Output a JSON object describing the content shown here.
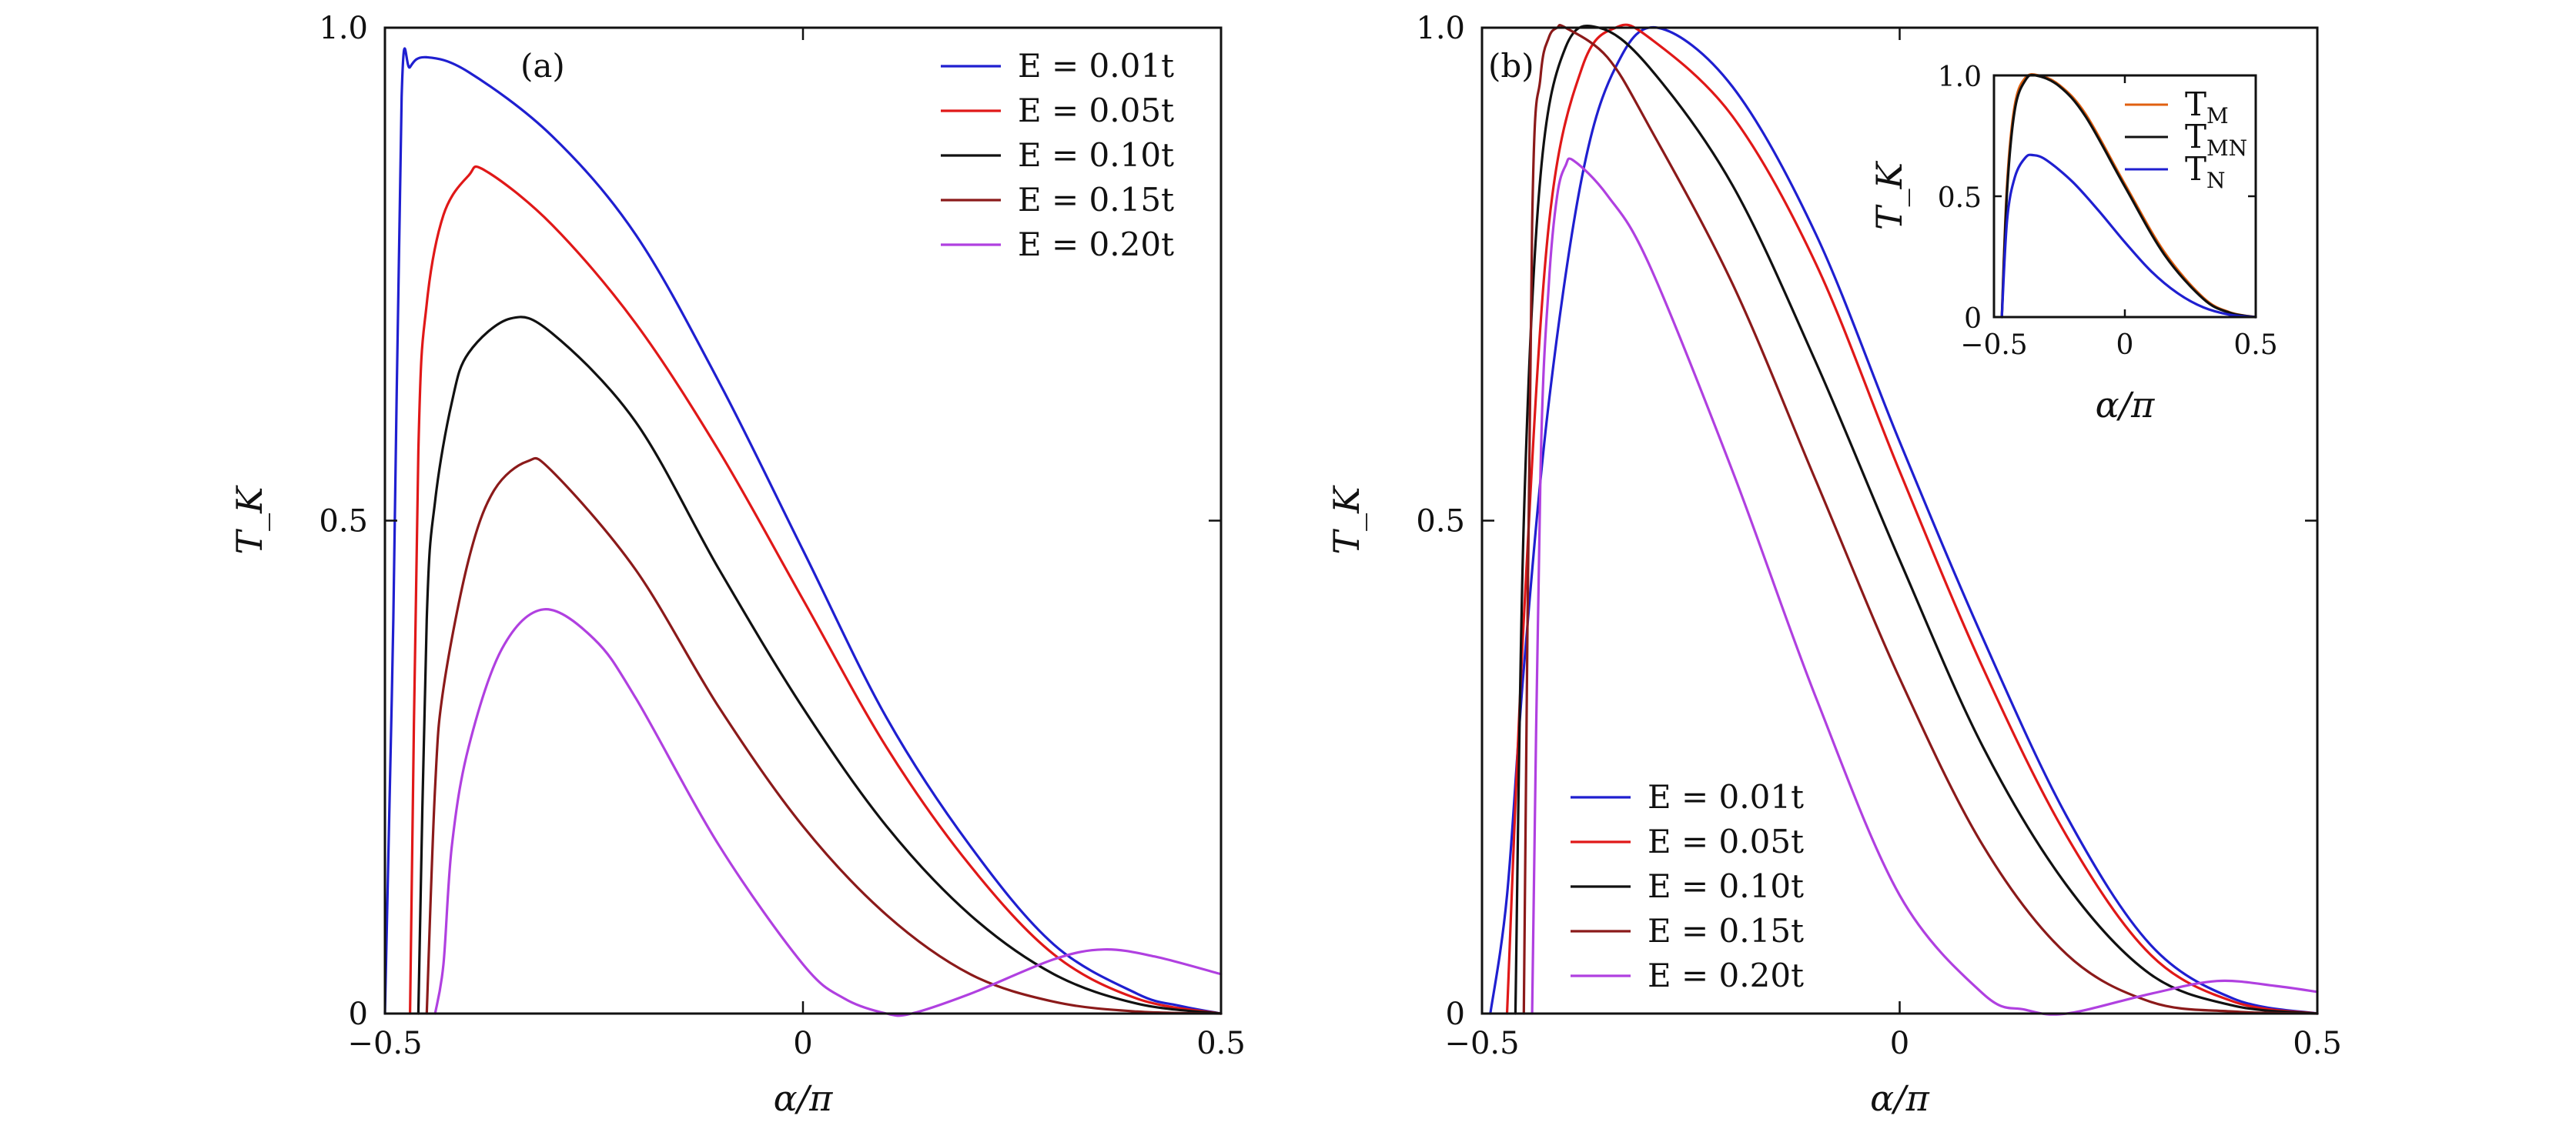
{
  "chart_data": [
    {
      "panel": "(a)",
      "type": "line",
      "xlabel": "α/π",
      "ylabel": "T_K",
      "xlim": [
        -0.5,
        0.5
      ],
      "ylim": [
        0,
        1.0
      ],
      "xticks": [
        "−0.5",
        "0",
        "0.5"
      ],
      "yticks": [
        "0",
        "0.5",
        "1.0"
      ],
      "legend_position": "top-right",
      "series": [
        {
          "name": "E = 0.01t",
          "color": "#1f1fd0",
          "x": [
            -0.5,
            -0.49,
            -0.48,
            -0.47,
            -0.45,
            -0.4,
            -0.3,
            -0.2,
            -0.1,
            0.0,
            0.1,
            0.2,
            0.3,
            0.4,
            0.45,
            0.5
          ],
          "y": [
            0,
            0.4,
            0.93,
            0.96,
            0.97,
            0.955,
            0.89,
            0.79,
            0.64,
            0.47,
            0.3,
            0.17,
            0.07,
            0.02,
            0.008,
            0.0
          ]
        },
        {
          "name": "E = 0.05t",
          "color": "#e01818",
          "x": [
            -0.47,
            -0.46,
            -0.45,
            -0.43,
            -0.4,
            -0.38,
            -0.3,
            -0.2,
            -0.1,
            0.0,
            0.1,
            0.2,
            0.3,
            0.4,
            0.5
          ],
          "y": [
            0,
            0.57,
            0.72,
            0.81,
            0.85,
            0.855,
            0.8,
            0.7,
            0.57,
            0.42,
            0.27,
            0.15,
            0.06,
            0.015,
            0.0
          ]
        },
        {
          "name": "E = 0.10t",
          "color": "#111111",
          "x": [
            -0.46,
            -0.45,
            -0.44,
            -0.42,
            -0.4,
            -0.35,
            -0.3,
            -0.2,
            -0.1,
            0.0,
            0.1,
            0.2,
            0.3,
            0.4,
            0.5
          ],
          "y": [
            0,
            0.4,
            0.52,
            0.62,
            0.67,
            0.705,
            0.69,
            0.6,
            0.45,
            0.31,
            0.19,
            0.1,
            0.04,
            0.01,
            0.0
          ]
        },
        {
          "name": "E = 0.15t",
          "color": "#8b1a1a",
          "x": [
            -0.45,
            -0.44,
            -0.43,
            -0.4,
            -0.37,
            -0.33,
            -0.3,
            -0.2,
            -0.1,
            0.0,
            0.1,
            0.2,
            0.3,
            0.4,
            0.5
          ],
          "y": [
            0,
            0.23,
            0.33,
            0.46,
            0.53,
            0.56,
            0.55,
            0.45,
            0.31,
            0.19,
            0.1,
            0.04,
            0.012,
            0.002,
            0.0
          ]
        },
        {
          "name": "E = 0.20t",
          "color": "#b040e0",
          "x": [
            -0.44,
            -0.43,
            -0.42,
            -0.4,
            -0.36,
            -0.31,
            -0.25,
            -0.2,
            -0.1,
            0.0,
            0.05,
            0.1,
            0.13,
            0.2,
            0.3,
            0.36,
            0.42,
            0.5
          ],
          "y": [
            0,
            0.05,
            0.17,
            0.27,
            0.37,
            0.41,
            0.38,
            0.32,
            0.17,
            0.05,
            0.015,
            0.0,
            0.0,
            0.02,
            0.055,
            0.065,
            0.058,
            0.04
          ]
        }
      ]
    },
    {
      "panel": "(b)",
      "type": "line",
      "xlabel": "α/π",
      "ylabel": "T_K",
      "xlim": [
        -0.5,
        0.5
      ],
      "ylim": [
        0,
        1.0
      ],
      "xticks": [
        "−0.5",
        "0",
        "0.5"
      ],
      "yticks": [
        "0",
        "0.5",
        "1.0"
      ],
      "legend_position": "bottom-left",
      "series": [
        {
          "name": "E = 0.01t",
          "color": "#1f1fd0",
          "x": [
            -0.49,
            -0.47,
            -0.45,
            -0.42,
            -0.38,
            -0.34,
            -0.29,
            -0.2,
            -0.1,
            0.0,
            0.1,
            0.2,
            0.3,
            0.4,
            0.5
          ],
          "y": [
            0,
            0.12,
            0.35,
            0.62,
            0.85,
            0.96,
            1.0,
            0.94,
            0.79,
            0.58,
            0.38,
            0.2,
            0.07,
            0.015,
            0.0
          ]
        },
        {
          "name": "E = 0.05t",
          "color": "#e01818",
          "x": [
            -0.47,
            -0.45,
            -0.42,
            -0.38,
            -0.34,
            -0.3,
            -0.2,
            -0.1,
            0.0,
            0.1,
            0.2,
            0.3,
            0.4,
            0.5
          ],
          "y": [
            0,
            0.4,
            0.8,
            0.96,
            1.0,
            0.99,
            0.91,
            0.76,
            0.55,
            0.35,
            0.18,
            0.06,
            0.012,
            0.0
          ]
        },
        {
          "name": "E = 0.10t",
          "color": "#111111",
          "x": [
            -0.46,
            -0.45,
            -0.43,
            -0.4,
            -0.36,
            -0.3,
            -0.2,
            -0.1,
            0.0,
            0.1,
            0.2,
            0.3,
            0.4,
            0.5
          ],
          "y": [
            0,
            0.5,
            0.85,
            0.98,
            1.0,
            0.96,
            0.84,
            0.66,
            0.46,
            0.27,
            0.13,
            0.04,
            0.008,
            0.0
          ]
        },
        {
          "name": "E = 0.15t",
          "color": "#8b1a1a",
          "x": [
            -0.45,
            -0.44,
            -0.43,
            -0.42,
            -0.41,
            -0.4,
            -0.35,
            -0.3,
            -0.2,
            -0.1,
            0.0,
            0.1,
            0.2,
            0.3,
            0.4,
            0.5
          ],
          "y": [
            0,
            0.8,
            0.95,
            0.99,
            1.0,
            1.0,
            0.97,
            0.9,
            0.74,
            0.54,
            0.34,
            0.17,
            0.06,
            0.012,
            0.002,
            0.0
          ]
        },
        {
          "name": "E = 0.20t",
          "color": "#b040e0",
          "x": [
            -0.44,
            -0.43,
            -0.42,
            -0.41,
            -0.4,
            -0.39,
            -0.35,
            -0.3,
            -0.2,
            -0.1,
            0.0,
            0.1,
            0.15,
            0.2,
            0.3,
            0.38,
            0.45,
            0.5
          ],
          "y": [
            0,
            0.55,
            0.74,
            0.83,
            0.86,
            0.865,
            0.83,
            0.76,
            0.55,
            0.32,
            0.12,
            0.02,
            0.004,
            0.0,
            0.02,
            0.033,
            0.028,
            0.022
          ]
        }
      ]
    },
    {
      "panel": "(b) inset",
      "type": "line",
      "xlabel": "α/π",
      "ylabel": "T_K",
      "xlim": [
        -0.5,
        0.5
      ],
      "ylim": [
        0,
        1.0
      ],
      "xticks": [
        "−0.5",
        "0",
        "0.5"
      ],
      "yticks": [
        "0",
        "0.5",
        "1.0"
      ],
      "legend_position": "top-right",
      "series": [
        {
          "name": "T",
          "subscript": "M",
          "color": "#e06010",
          "x": [
            -0.47,
            -0.45,
            -0.42,
            -0.38,
            -0.33,
            -0.25,
            -0.15,
            0.0,
            0.15,
            0.3,
            0.4,
            0.5
          ],
          "y": [
            0,
            0.55,
            0.88,
            0.99,
            1.0,
            0.96,
            0.84,
            0.55,
            0.27,
            0.08,
            0.02,
            0.0
          ]
        },
        {
          "name": "T",
          "subscript": "MN",
          "color": "#111111",
          "x": [
            -0.47,
            -0.45,
            -0.42,
            -0.38,
            -0.34,
            -0.25,
            -0.15,
            0.0,
            0.15,
            0.3,
            0.4,
            0.5
          ],
          "y": [
            0,
            0.52,
            0.86,
            0.98,
            1.0,
            0.955,
            0.83,
            0.54,
            0.26,
            0.075,
            0.018,
            0.0
          ]
        },
        {
          "name": "T",
          "subscript": "N",
          "color": "#1f1fd0",
          "x": [
            -0.47,
            -0.45,
            -0.42,
            -0.38,
            -0.35,
            -0.3,
            -0.2,
            -0.1,
            0.0,
            0.1,
            0.2,
            0.3,
            0.4,
            0.5
          ],
          "y": [
            0,
            0.4,
            0.58,
            0.66,
            0.67,
            0.65,
            0.56,
            0.44,
            0.31,
            0.19,
            0.1,
            0.04,
            0.01,
            0.0
          ]
        }
      ]
    }
  ]
}
